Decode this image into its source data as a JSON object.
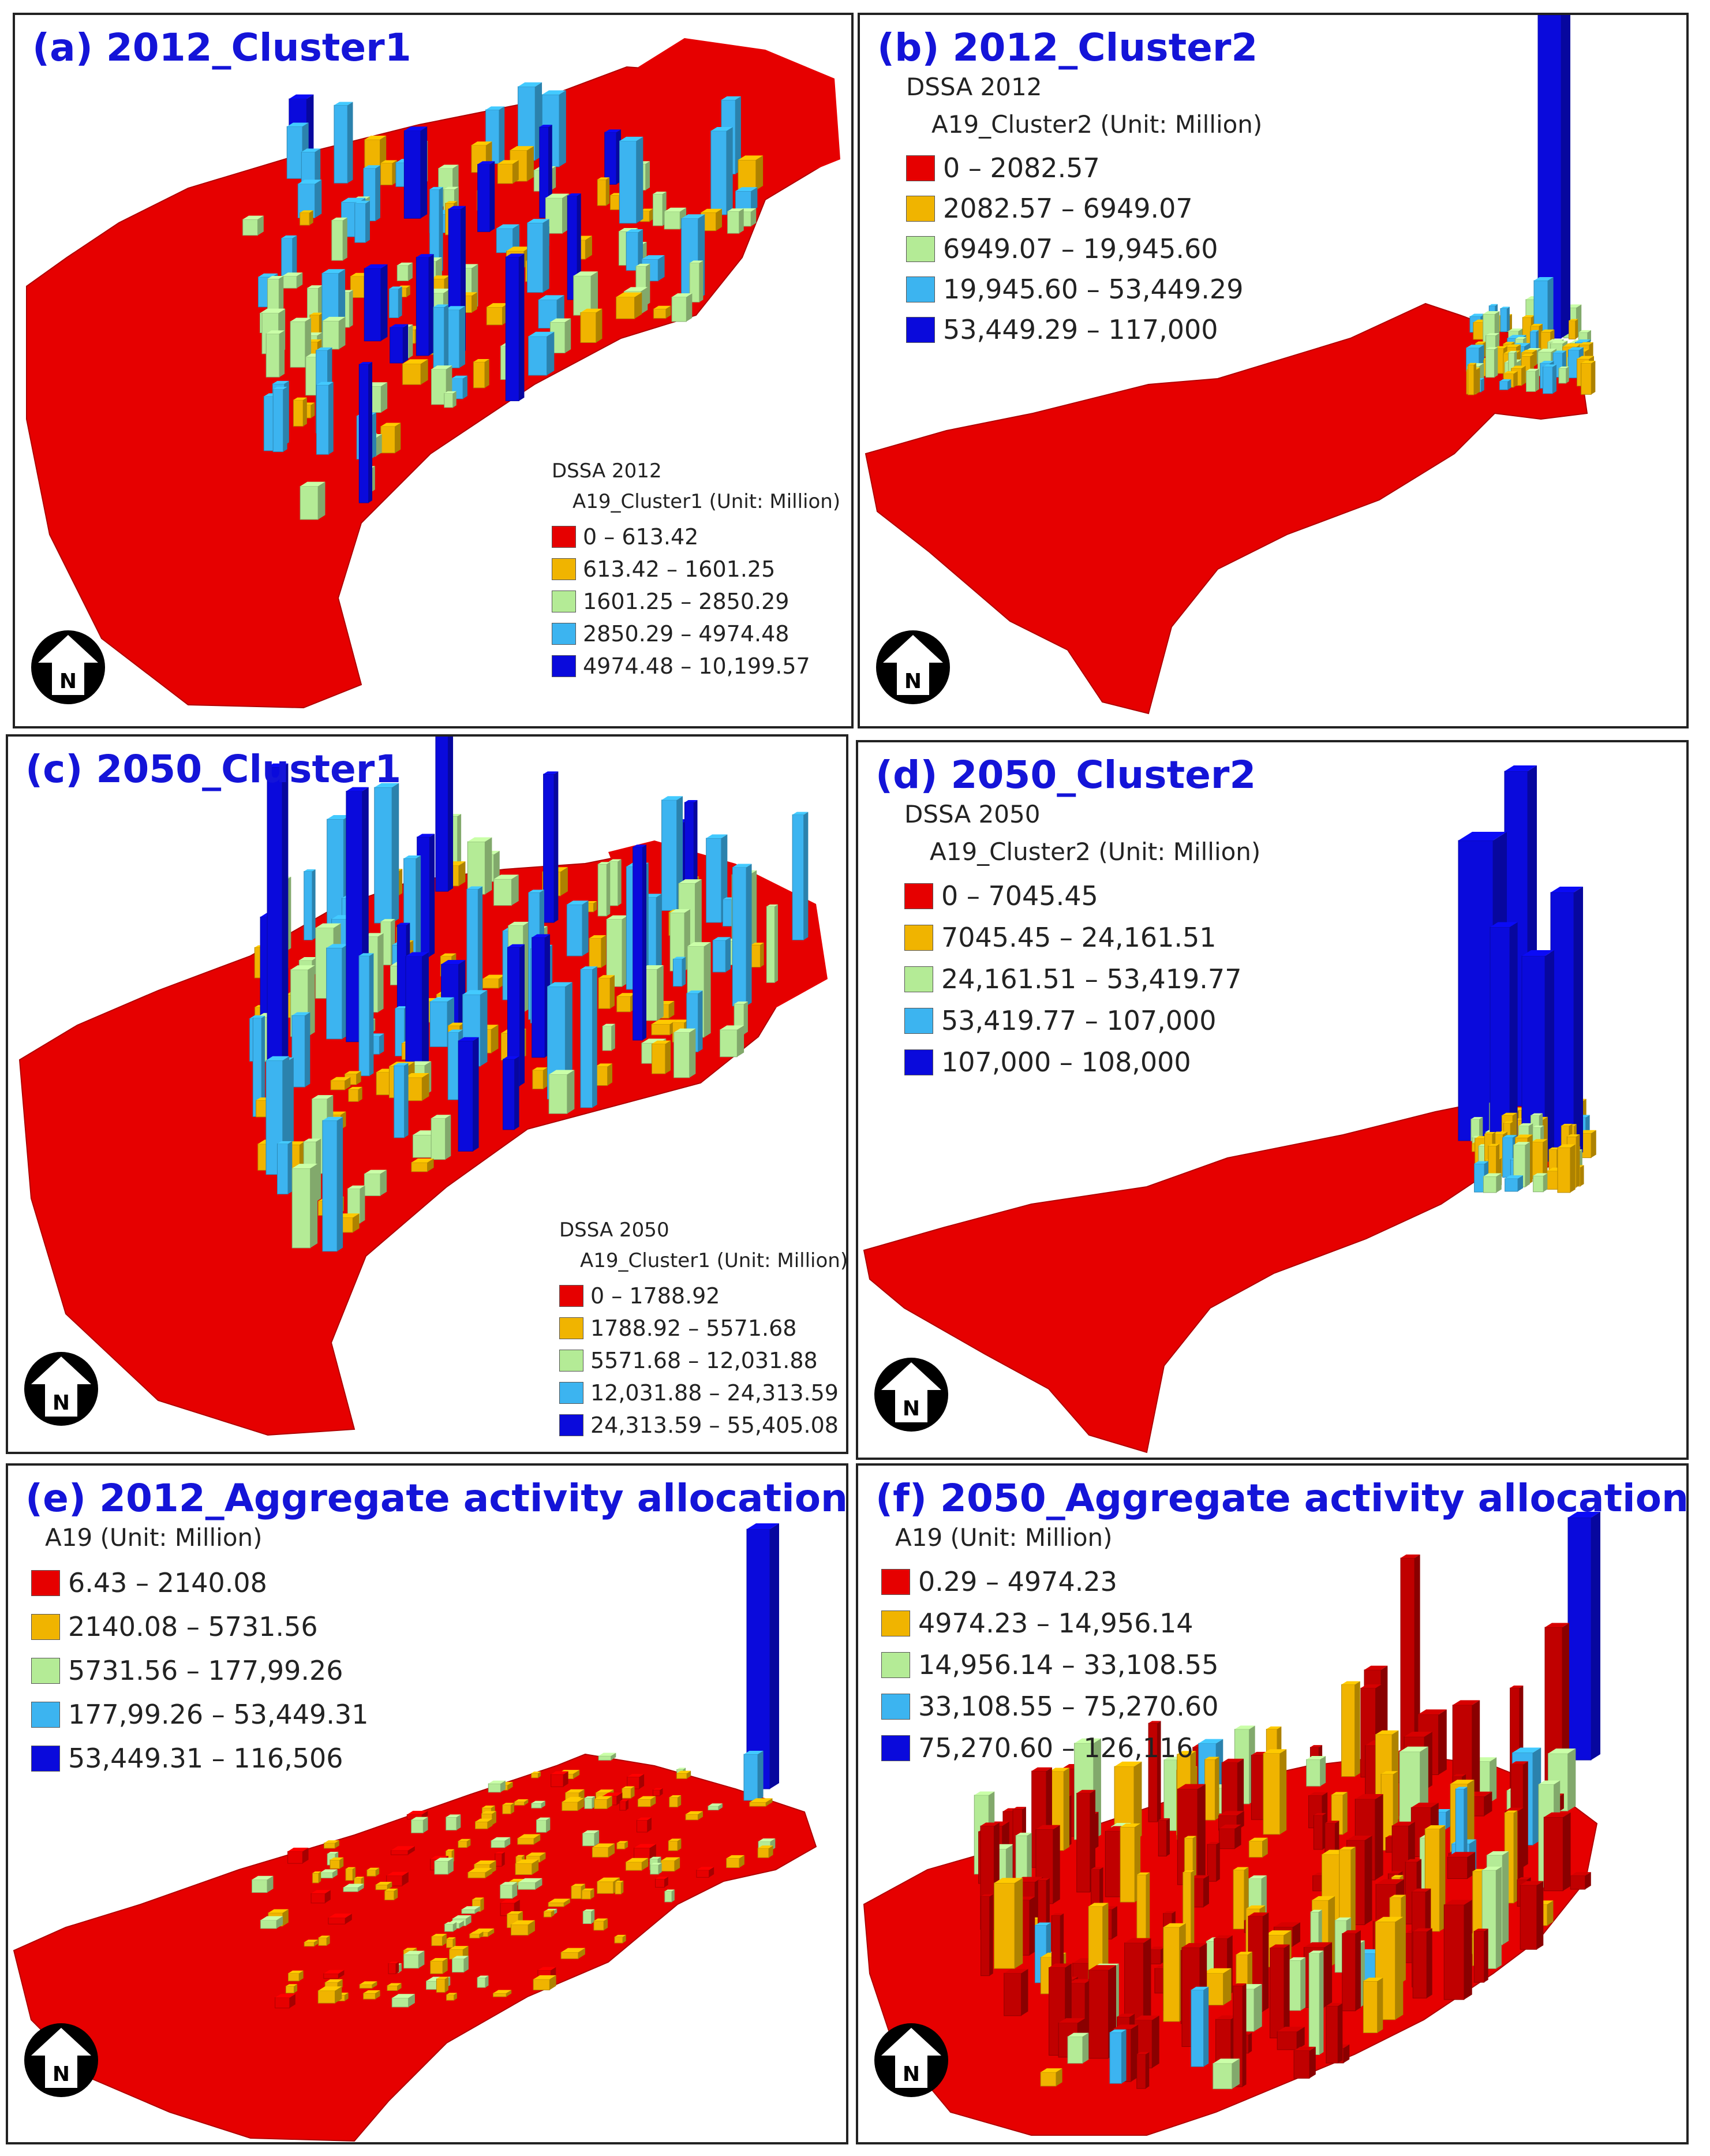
{
  "colors": {
    "red": "#e60000",
    "orange": "#f0b400",
    "lightgreen": "#b4eb96",
    "lightblue": "#3cb4f0",
    "blue": "#0a0adc",
    "darkred": "#c00000",
    "panel_title": "#1414d8"
  },
  "north_arrow": {
    "icon": "north-arrow-icon",
    "label": "N"
  },
  "panels": [
    {
      "id": "a",
      "title": "(a) 2012_Cluster1",
      "legend": {
        "title": "DSSA 2012",
        "subtitle": "A19_Cluster1 (Unit: Million)",
        "classes": [
          {
            "label": "0 – 613.42",
            "color": "#e60000"
          },
          {
            "label": "613.42 – 1601.25",
            "color": "#f0b400"
          },
          {
            "label": "1601.25 – 2850.29",
            "color": "#b4eb96"
          },
          {
            "label": "2850.29 – 4974.48",
            "color": "#3cb4f0"
          },
          {
            "label": "4974.48 – 10,199.57",
            "color": "#0a0adc"
          }
        ]
      }
    },
    {
      "id": "b",
      "title": "(b) 2012_Cluster2",
      "legend": {
        "title": "DSSA 2012",
        "subtitle": "A19_Cluster2 (Unit: Million)",
        "classes": [
          {
            "label": "0 – 2082.57",
            "color": "#e60000"
          },
          {
            "label": "2082.57 – 6949.07",
            "color": "#f0b400"
          },
          {
            "label": "6949.07 – 19,945.60",
            "color": "#b4eb96"
          },
          {
            "label": "19,945.60 – 53,449.29",
            "color": "#3cb4f0"
          },
          {
            "label": "53,449.29 – 117,000",
            "color": "#0a0adc"
          }
        ]
      }
    },
    {
      "id": "c",
      "title": "(c) 2050_Cluster1",
      "legend": {
        "title": "DSSA 2050",
        "subtitle": "A19_Cluster1 (Unit: Million)",
        "classes": [
          {
            "label": "0 – 1788.92",
            "color": "#e60000"
          },
          {
            "label": "1788.92 – 5571.68",
            "color": "#f0b400"
          },
          {
            "label": "5571.68 – 12,031.88",
            "color": "#b4eb96"
          },
          {
            "label": "12,031.88 – 24,313.59",
            "color": "#3cb4f0"
          },
          {
            "label": "24,313.59 – 55,405.08",
            "color": "#0a0adc"
          }
        ]
      }
    },
    {
      "id": "d",
      "title": "(d) 2050_Cluster2",
      "legend": {
        "title": "DSSA 2050",
        "subtitle": "A19_Cluster2 (Unit: Million)",
        "classes": [
          {
            "label": "0 – 7045.45",
            "color": "#e60000"
          },
          {
            "label": "7045.45 – 24,161.51",
            "color": "#f0b400"
          },
          {
            "label": "24,161.51 – 53,419.77",
            "color": "#b4eb96"
          },
          {
            "label": "53,419.77 – 107,000",
            "color": "#3cb4f0"
          },
          {
            "label": "107,000 – 108,000",
            "color": "#0a0adc"
          }
        ]
      }
    },
    {
      "id": "e",
      "title": "(e) 2012_Aggregate activity allocation",
      "legend": {
        "title": "",
        "subtitle": "A19 (Unit: Million)",
        "classes": [
          {
            "label": "6.43 – 2140.08",
            "color": "#e60000"
          },
          {
            "label": "2140.08 – 5731.56",
            "color": "#f0b400"
          },
          {
            "label": "5731.56 – 177,99.26",
            "color": "#b4eb96"
          },
          {
            "label": "177,99.26 – 53,449.31",
            "color": "#3cb4f0"
          },
          {
            "label": "53,449.31 – 116,506",
            "color": "#0a0adc"
          }
        ]
      }
    },
    {
      "id": "f",
      "title": "(f) 2050_Aggregate activity allocation",
      "legend": {
        "title": "",
        "subtitle": "A19 (Unit: Million)",
        "classes": [
          {
            "label": "0.29 – 4974.23",
            "color": "#e60000"
          },
          {
            "label": "4974.23 – 14,956.14",
            "color": "#f0b400"
          },
          {
            "label": "14,956.14 – 33,108.55",
            "color": "#b4eb96"
          },
          {
            "label": "33,108.55 – 75,270.60",
            "color": "#3cb4f0"
          },
          {
            "label": "75,270.60 – 126,116",
            "color": "#0a0adc"
          }
        ]
      }
    }
  ]
}
